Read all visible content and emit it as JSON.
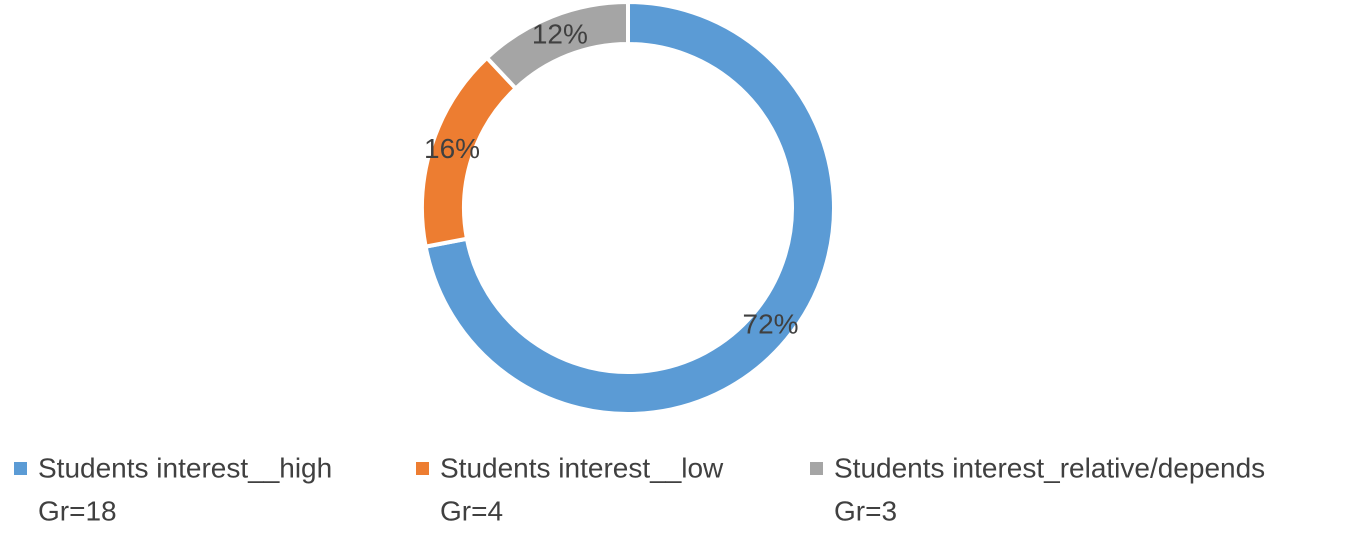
{
  "chart_data": {
    "type": "donut",
    "categories": [
      "Students interest__high",
      "Students interest__low",
      "Students interest_relative/depends"
    ],
    "sublabels": [
      "Gr=18",
      "Gr=4",
      "Gr=3"
    ],
    "values": [
      72,
      16,
      12
    ],
    "value_labels": [
      "72%",
      "16%",
      "12%"
    ],
    "colors": [
      "#5b9bd5",
      "#ed7d31",
      "#a5a5a5"
    ],
    "legend": "bottom"
  }
}
